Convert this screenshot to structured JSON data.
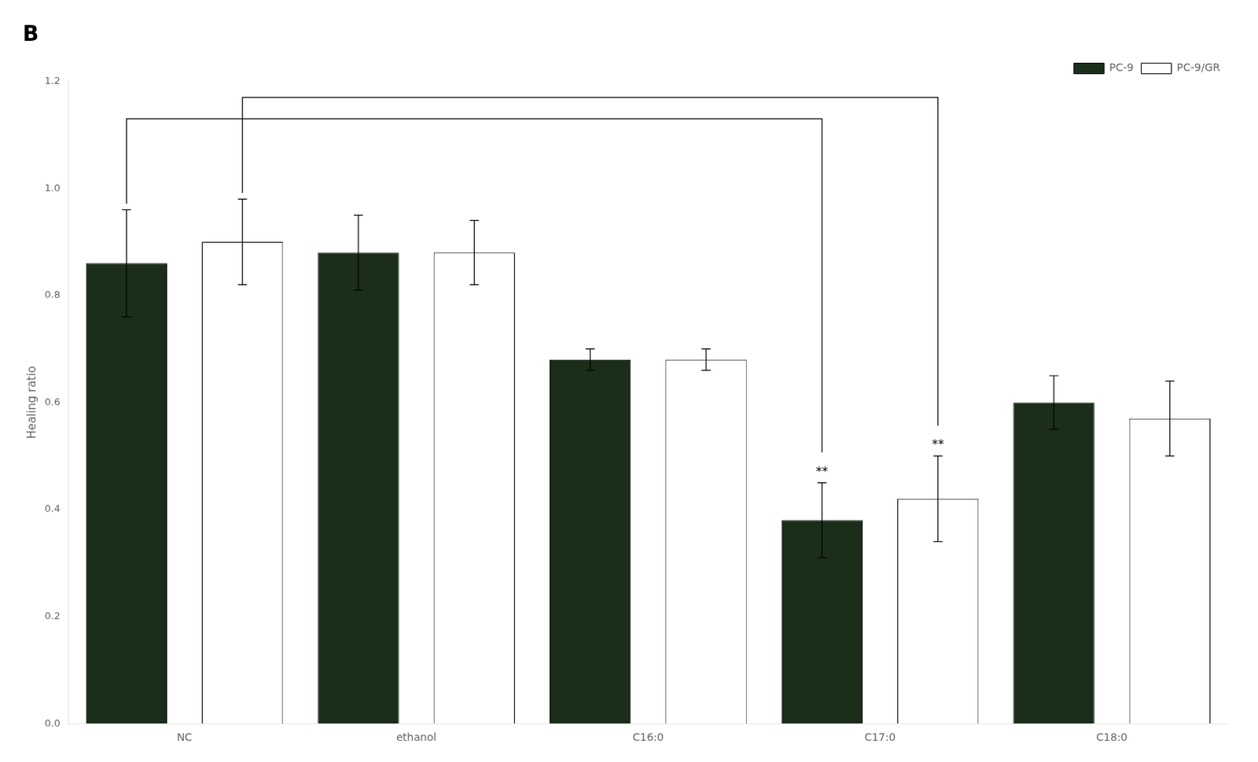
{
  "chart_data": {
    "type": "bar",
    "title": "B",
    "categories": [
      "NC",
      "ethanol",
      "C16:0",
      "C17:0",
      "C18:0"
    ],
    "series": [
      {
        "name": "PC-9",
        "color": "#1a2e1a",
        "values": [
          0.86,
          0.88,
          0.68,
          0.38,
          0.6
        ],
        "errors": [
          0.1,
          0.07,
          0.02,
          0.07,
          0.05
        ]
      },
      {
        "name": "PC-9/GR",
        "color": "#ffffff",
        "values": [
          0.9,
          0.88,
          0.68,
          0.42,
          0.57
        ],
        "errors": [
          0.08,
          0.06,
          0.02,
          0.08,
          0.07
        ]
      }
    ],
    "ylabel": "Healing ratio",
    "ylim": [
      0,
      1.2
    ],
    "yticks": [
      {
        "value": 0,
        "label": "0.0"
      },
      0.2,
      0.4,
      0.6,
      0.8,
      {
        "value": 1.0,
        "label": "1.0"
      },
      1.2
    ],
    "grid": false,
    "legend": "top-right",
    "annotations": [
      {
        "text": "**",
        "category": "C17:0",
        "series": "PC-9"
      },
      {
        "text": "**",
        "category": "C17:0",
        "series": "PC-9/GR"
      }
    ],
    "brackets": [
      {
        "series": "PC-9",
        "from": "NC",
        "to": "C17:0",
        "y": 1.13
      },
      {
        "series": "PC-9/GR",
        "from": "NC",
        "to": "C17:0",
        "y": 1.17
      }
    ]
  }
}
